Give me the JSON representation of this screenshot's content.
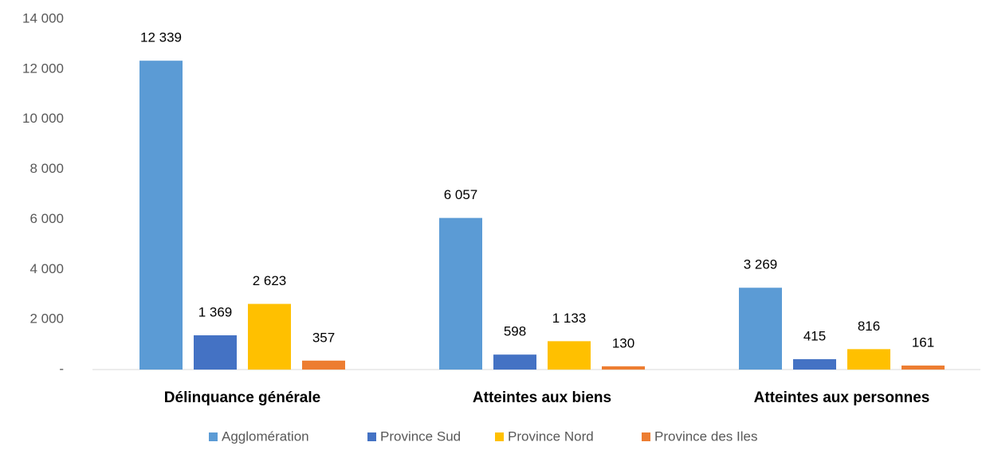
{
  "chart_data": {
    "type": "bar",
    "categories": [
      "Délinquance générale",
      "Atteintes aux biens",
      "Atteintes aux personnes"
    ],
    "series": [
      {
        "name": "Agglomération",
        "color": "#5b9bd5",
        "values": [
          12339,
          6057,
          3269
        ],
        "value_labels": [
          "12 339",
          "6 057",
          "3 269"
        ]
      },
      {
        "name": "Province Sud",
        "color": "#4472c4",
        "values": [
          1369,
          598,
          415
        ],
        "value_labels": [
          "1 369",
          "598",
          "415"
        ]
      },
      {
        "name": "Province Nord",
        "color": "#ffc000",
        "values": [
          2623,
          1133,
          816
        ],
        "value_labels": [
          "2 623",
          "1 133",
          "816"
        ]
      },
      {
        "name": "Province des Iles",
        "color": "#ed7d31",
        "values": [
          357,
          130,
          161
        ],
        "value_labels": [
          "357",
          "130",
          "161"
        ]
      }
    ],
    "ylim": [
      0,
      14000
    ],
    "yticks": [
      {
        "value": 0,
        "label": "-"
      },
      {
        "value": 2000,
        "label": "2 000"
      },
      {
        "value": 4000,
        "label": "4 000"
      },
      {
        "value": 6000,
        "label": "6 000"
      },
      {
        "value": 8000,
        "label": "8 000"
      },
      {
        "value": 10000,
        "label": "10 000"
      },
      {
        "value": 12000,
        "label": "12 000"
      },
      {
        "value": 14000,
        "label": "14 000"
      }
    ],
    "grid": false,
    "legend": "bottom"
  }
}
